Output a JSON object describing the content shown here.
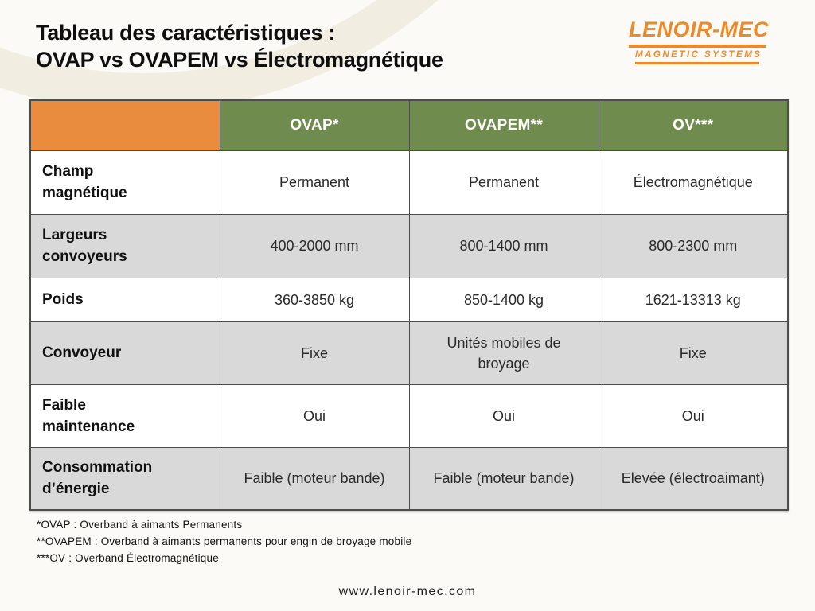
{
  "title": {
    "line1": "Tableau des caractéristiques :",
    "line2": "OVAP vs OVAPEM vs Électromagnétique"
  },
  "logo": {
    "name": "LENOIR-MEC",
    "tagline": "MAGNETIC SYSTEMS"
  },
  "table": {
    "columns": [
      "",
      "OVAP*",
      "OVAPEM**",
      "OV***"
    ],
    "rows": [
      {
        "label": "Champ magnétique",
        "values": [
          "Permanent",
          "Permanent",
          "Électromagnétique"
        ]
      },
      {
        "label": "Largeurs convoyeurs",
        "values": [
          "400-2000 mm",
          "800-1400 mm",
          "800-2300 mm"
        ]
      },
      {
        "label": "Poids",
        "values": [
          "360-3850 kg",
          "850-1400 kg",
          "1621-13313 kg"
        ]
      },
      {
        "label": "Convoyeur",
        "values": [
          "Fixe",
          "Unités mobiles de broyage",
          "Fixe"
        ]
      },
      {
        "label": "Faible maintenance",
        "values": [
          "Oui",
          "Oui",
          "Oui"
        ]
      },
      {
        "label": "Consommation d’énergie",
        "values": [
          "Faible (moteur bande)",
          "Faible (moteur bande)",
          "Elevée (électroaimant)"
        ]
      }
    ]
  },
  "footnotes": [
    "*OVAP : Overband à aimants Permanents",
    "**OVAPEM : Overband à aimants permanents pour engin de broyage mobile",
    "***OV : Overband Électromagnétique"
  ],
  "footer": {
    "url": "www.lenoir-mec.com"
  },
  "colors": {
    "accent_orange": "#EA8C3D",
    "logo_orange": "#EC8A2A",
    "header_green": "#6F8C4E",
    "row_gray": "#D9D9D9",
    "border_dark": "#4D4D4D",
    "background_cream": "#F2EDE1"
  }
}
